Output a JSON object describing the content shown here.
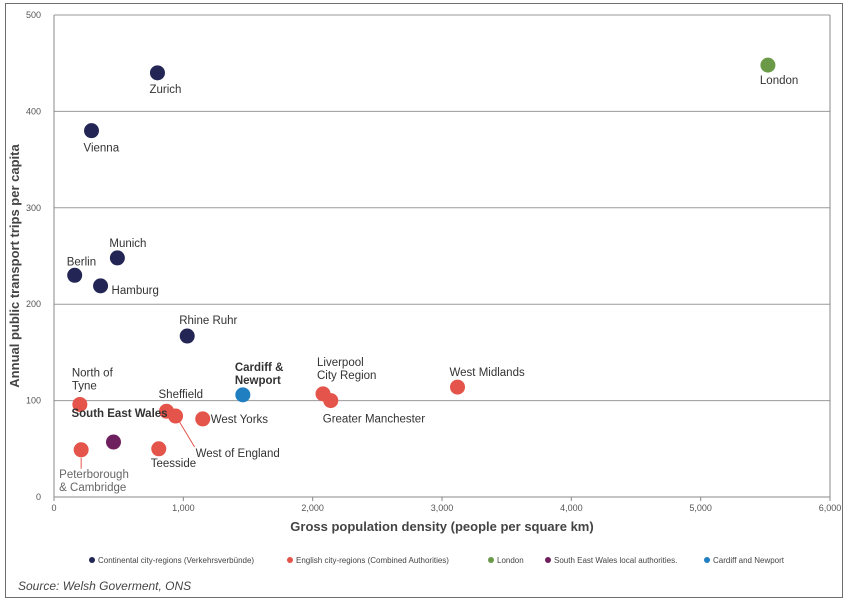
{
  "source": "Source: Welsh Goverment, ONS",
  "chart_data": {
    "type": "scatter",
    "xlabel": "Gross population density (people per square km)",
    "ylabel": "Annual public transport trips per capita",
    "xlim": [
      0,
      6000
    ],
    "ylim": [
      0,
      500
    ],
    "x_ticks": [
      0,
      1000,
      2000,
      3000,
      4000,
      5000,
      6000
    ],
    "x_tick_labels": [
      "0",
      "1,000",
      "2,000",
      "3,000",
      "4,000",
      "5,000",
      "6,000"
    ],
    "y_ticks": [
      0,
      100,
      200,
      300,
      400,
      500
    ],
    "y_tick_labels": [
      "0",
      "100",
      "200",
      "300",
      "400",
      "500"
    ],
    "grid": "horizontal",
    "legend_position": "bottom",
    "series": [
      {
        "name": "Continental city-regions (Verkehrsverbünde)",
        "color": "#232554",
        "points": [
          {
            "label": "Zurich",
            "x": 800,
            "y": 440
          },
          {
            "label": "Vienna",
            "x": 290,
            "y": 380
          },
          {
            "label": "Munich",
            "x": 490,
            "y": 248
          },
          {
            "label": "Berlin",
            "x": 160,
            "y": 230
          },
          {
            "label": "Hamburg",
            "x": 360,
            "y": 219
          },
          {
            "label": "Rhine Ruhr",
            "x": 1030,
            "y": 167
          }
        ]
      },
      {
        "name": "English city-regions (Combined Authorities)",
        "color": "#e4544a",
        "points": [
          {
            "label": "North of Tyne",
            "x": 200,
            "y": 96
          },
          {
            "label": "Sheffield",
            "x": 870,
            "y": 89
          },
          {
            "label": "West of England",
            "x": 940,
            "y": 84
          },
          {
            "label": "West Yorks",
            "x": 1150,
            "y": 81
          },
          {
            "label": "Liverpool City Region",
            "x": 2080,
            "y": 107
          },
          {
            "label": "Greater Manchester",
            "x": 2140,
            "y": 100
          },
          {
            "label": "West Midlands",
            "x": 3120,
            "y": 114
          },
          {
            "label": "Peterborough & Cambridge",
            "x": 210,
            "y": 49
          },
          {
            "label": "Teesside",
            "x": 810,
            "y": 50
          }
        ]
      },
      {
        "name": "London",
        "color": "#6a9a48",
        "points": [
          {
            "label": "London",
            "x": 5520,
            "y": 448
          }
        ]
      },
      {
        "name": "South East Wales local authorities.",
        "color": "#6e1f5e",
        "points": [
          {
            "label": "South East Wales",
            "x": 460,
            "y": 57
          }
        ]
      },
      {
        "name": "Cardiff and Newport",
        "color": "#1f7fc1",
        "points": [
          {
            "label": "Cardiff & Newport",
            "x": 1460,
            "y": 106
          }
        ]
      }
    ]
  }
}
